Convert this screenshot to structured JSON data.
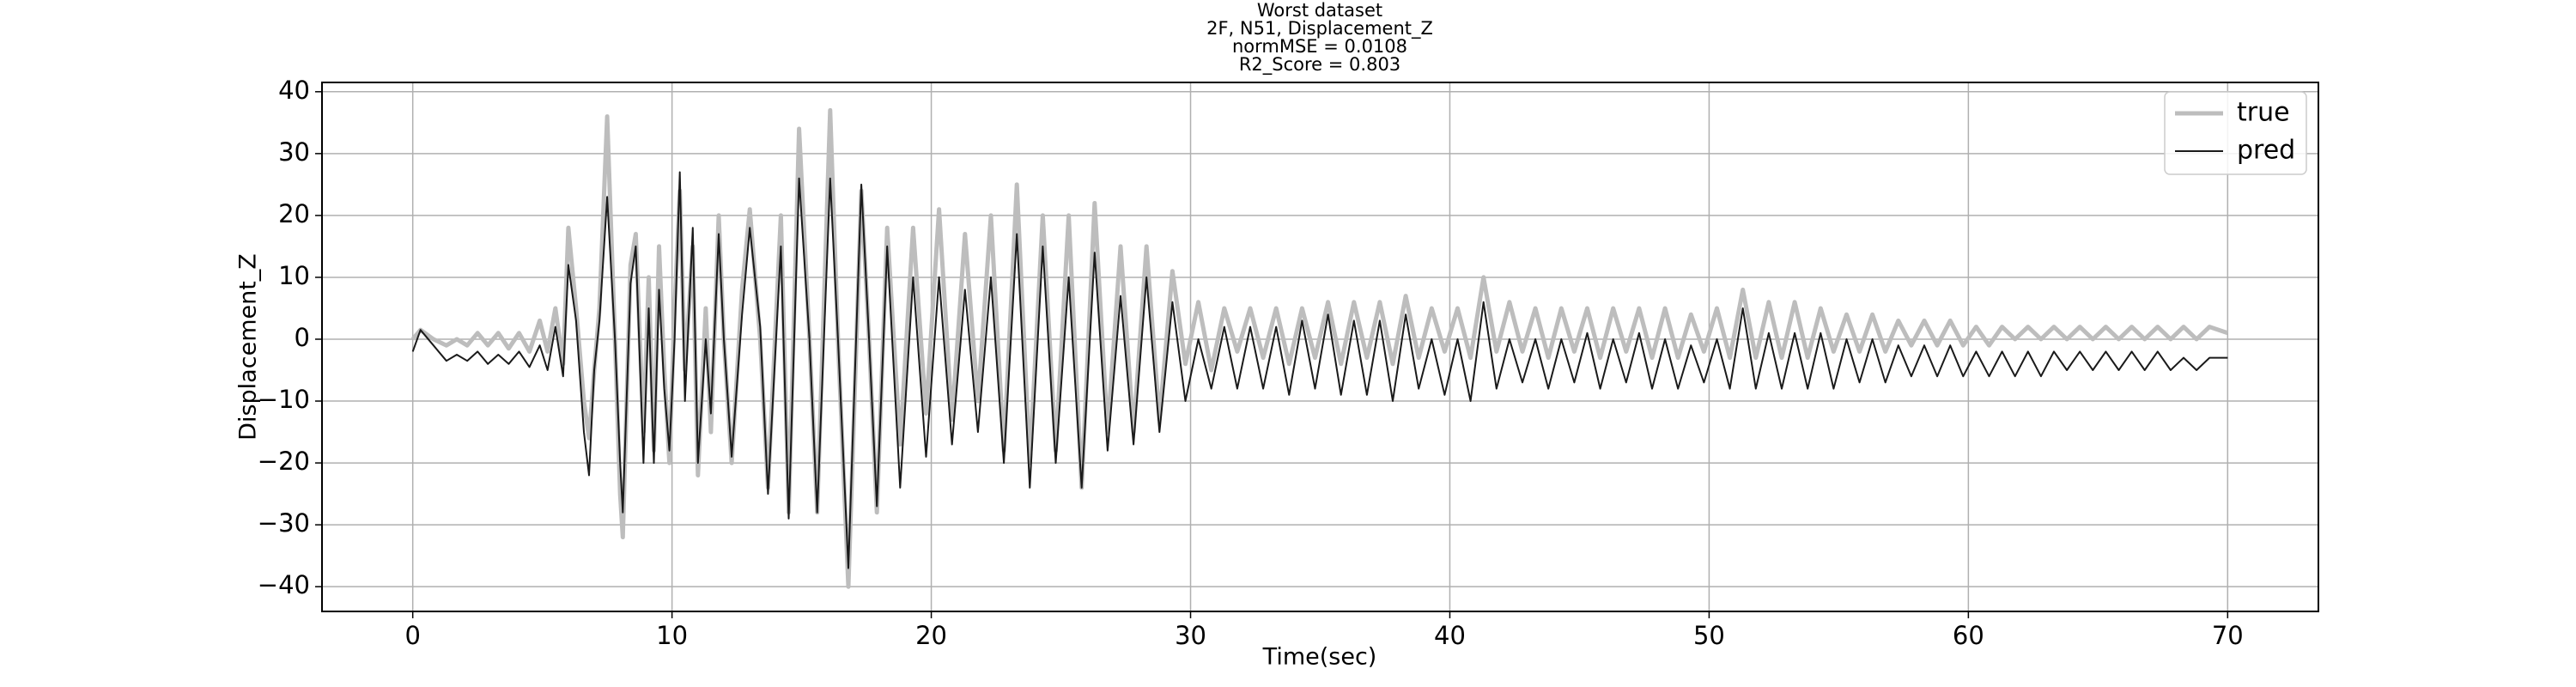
{
  "chart_data": {
    "type": "line",
    "title": [
      "Worst dataset",
      "2F, N51, Displacement_Z",
      "normMSE = 0.0108",
      "R2_Score = 0.803"
    ],
    "xlabel": "Time(sec)",
    "ylabel": "Displacement_Z",
    "xlim": [
      -3.5,
      73.5
    ],
    "ylim": [
      -44,
      41.5
    ],
    "xticks": [
      0,
      10,
      20,
      30,
      40,
      50,
      60,
      70
    ],
    "yticks": [
      {
        "value": -40,
        "label": "−40"
      },
      {
        "value": -30,
        "label": "−30"
      },
      {
        "value": -20,
        "label": "−20"
      },
      {
        "value": -10,
        "label": "−10"
      },
      0,
      10,
      20,
      30,
      40
    ],
    "grid": true,
    "legend": "upper right",
    "x": [
      0,
      0.3,
      0.8,
      1.3,
      1.7,
      2.1,
      2.5,
      2.9,
      3.3,
      3.7,
      4.1,
      4.5,
      4.9,
      5.2,
      5.5,
      5.8,
      6.0,
      6.3,
      6.6,
      6.8,
      7.0,
      7.2,
      7.5,
      7.8,
      8.0,
      8.1,
      8.4,
      8.6,
      8.9,
      9.1,
      9.3,
      9.5,
      9.7,
      9.9,
      10.1,
      10.3,
      10.5,
      10.8,
      11.0,
      11.3,
      11.5,
      11.8,
      12.0,
      12.3,
      12.7,
      13.0,
      13.4,
      13.7,
      14.2,
      14.5,
      14.9,
      15.3,
      15.6,
      16.1,
      16.4,
      16.8,
      17.3,
      17.6,
      17.9,
      18.3,
      18.8,
      19.3,
      19.8,
      20.3,
      20.8,
      21.3,
      21.8,
      22.3,
      22.8,
      23.3,
      23.8,
      24.3,
      24.8,
      25.3,
      25.8,
      26.3,
      26.8,
      27.3,
      27.8,
      28.3,
      28.8,
      29.3,
      29.8,
      30.3,
      30.8,
      31.3,
      31.8,
      32.3,
      32.8,
      33.3,
      33.8,
      34.3,
      34.8,
      35.3,
      35.8,
      36.3,
      36.8,
      37.3,
      37.8,
      38.3,
      38.8,
      39.3,
      39.8,
      40.3,
      40.8,
      41.3,
      41.8,
      42.3,
      42.8,
      43.3,
      43.8,
      44.3,
      44.8,
      45.3,
      45.8,
      46.3,
      46.8,
      47.3,
      47.8,
      48.3,
      48.8,
      49.3,
      49.8,
      50.3,
      50.8,
      51.3,
      51.8,
      52.3,
      52.8,
      53.3,
      53.8,
      54.3,
      54.8,
      55.3,
      55.8,
      56.3,
      56.8,
      57.3,
      57.8,
      58.3,
      58.8,
      59.3,
      59.8,
      60.3,
      60.8,
      61.3,
      61.8,
      62.3,
      62.8,
      63.3,
      63.8,
      64.3,
      64.8,
      65.3,
      65.8,
      66.3,
      66.8,
      67.3,
      67.8,
      68.3,
      68.8,
      69.3,
      70
    ],
    "series": [
      {
        "name": "true",
        "color": "#bdbdbd",
        "width": 5,
        "values": [
          0,
          1.5,
          0,
          -1,
          0,
          -1,
          1,
          -1,
          1,
          -1.5,
          1,
          -2,
          3,
          -2,
          5,
          -4,
          18,
          5,
          -10,
          -16,
          -5,
          5,
          36,
          0,
          -25,
          -32,
          12,
          17,
          -15,
          10,
          -18,
          15,
          -5,
          -20,
          5,
          24,
          -5,
          15,
          -22,
          5,
          -15,
          20,
          0,
          -20,
          8,
          21,
          0,
          -24,
          20,
          -28,
          34,
          0,
          -28,
          37,
          0,
          -40,
          24,
          0,
          -28,
          18,
          -17,
          18,
          -12,
          21,
          -13,
          17,
          -10,
          20,
          -18,
          25,
          -20,
          20,
          -18,
          20,
          -24,
          22,
          -15,
          15,
          -15,
          15,
          -13,
          11,
          -4,
          6,
          -5,
          5,
          -2,
          5,
          -3,
          5,
          -4,
          5,
          -3,
          6,
          -4,
          6,
          -3,
          6,
          -4,
          7,
          -3,
          5,
          -2,
          5,
          -3,
          10,
          -2,
          6,
          -2,
          5,
          -3,
          5,
          -2,
          5,
          -3,
          5,
          -2,
          5,
          -3,
          5,
          -3,
          4,
          -2,
          5,
          -3,
          8,
          -3,
          6,
          -3,
          6,
          -3,
          5,
          -2,
          4,
          -2,
          4,
          -2,
          3,
          -1,
          3,
          -1,
          3,
          -1,
          2,
          -1,
          2,
          0,
          2,
          0,
          2,
          0,
          2,
          0,
          2,
          0,
          2,
          0,
          2,
          0,
          2,
          0,
          2,
          1
        ]
      },
      {
        "name": "pred",
        "color": "#1a1a1a",
        "width": 2,
        "values": [
          -2,
          1.5,
          -1,
          -3.5,
          -2.5,
          -3.5,
          -2,
          -4,
          -2.5,
          -4,
          -2,
          -4.5,
          -1,
          -5,
          2,
          -6,
          12,
          3,
          -15,
          -22,
          -5,
          3,
          23,
          0,
          -20,
          -28,
          9,
          15,
          -20,
          5,
          -20,
          8,
          -8,
          -18,
          0,
          27,
          -10,
          18,
          -20,
          0,
          -12,
          17,
          0,
          -19,
          4,
          18,
          2,
          -25,
          15,
          -29,
          26,
          0,
          -28,
          26,
          0,
          -37,
          25,
          0,
          -27,
          15,
          -24,
          10,
          -19,
          10,
          -17,
          8,
          -15,
          10,
          -20,
          17,
          -24,
          15,
          -20,
          10,
          -24,
          14,
          -18,
          7,
          -17,
          10,
          -15,
          6,
          -10,
          0,
          -8,
          2,
          -8,
          2,
          -8,
          2,
          -9,
          3,
          -8,
          4,
          -9,
          3,
          -9,
          3,
          -10,
          4,
          -8,
          0,
          -9,
          0,
          -10,
          6,
          -8,
          0,
          -7,
          0,
          -8,
          0,
          -7,
          1,
          -8,
          0,
          -7,
          1,
          -8,
          0,
          -8,
          -1,
          -7,
          0,
          -8,
          5,
          -8,
          1,
          -8,
          1,
          -8,
          1,
          -8,
          0,
          -7,
          0,
          -7,
          -1,
          -6,
          -1,
          -6,
          -1,
          -6,
          -2,
          -6,
          -2,
          -6,
          -2,
          -6,
          -2,
          -5,
          -2,
          -5,
          -2,
          -5,
          -2,
          -5,
          -2,
          -5,
          -3,
          -5,
          -3,
          -3
        ]
      }
    ]
  }
}
